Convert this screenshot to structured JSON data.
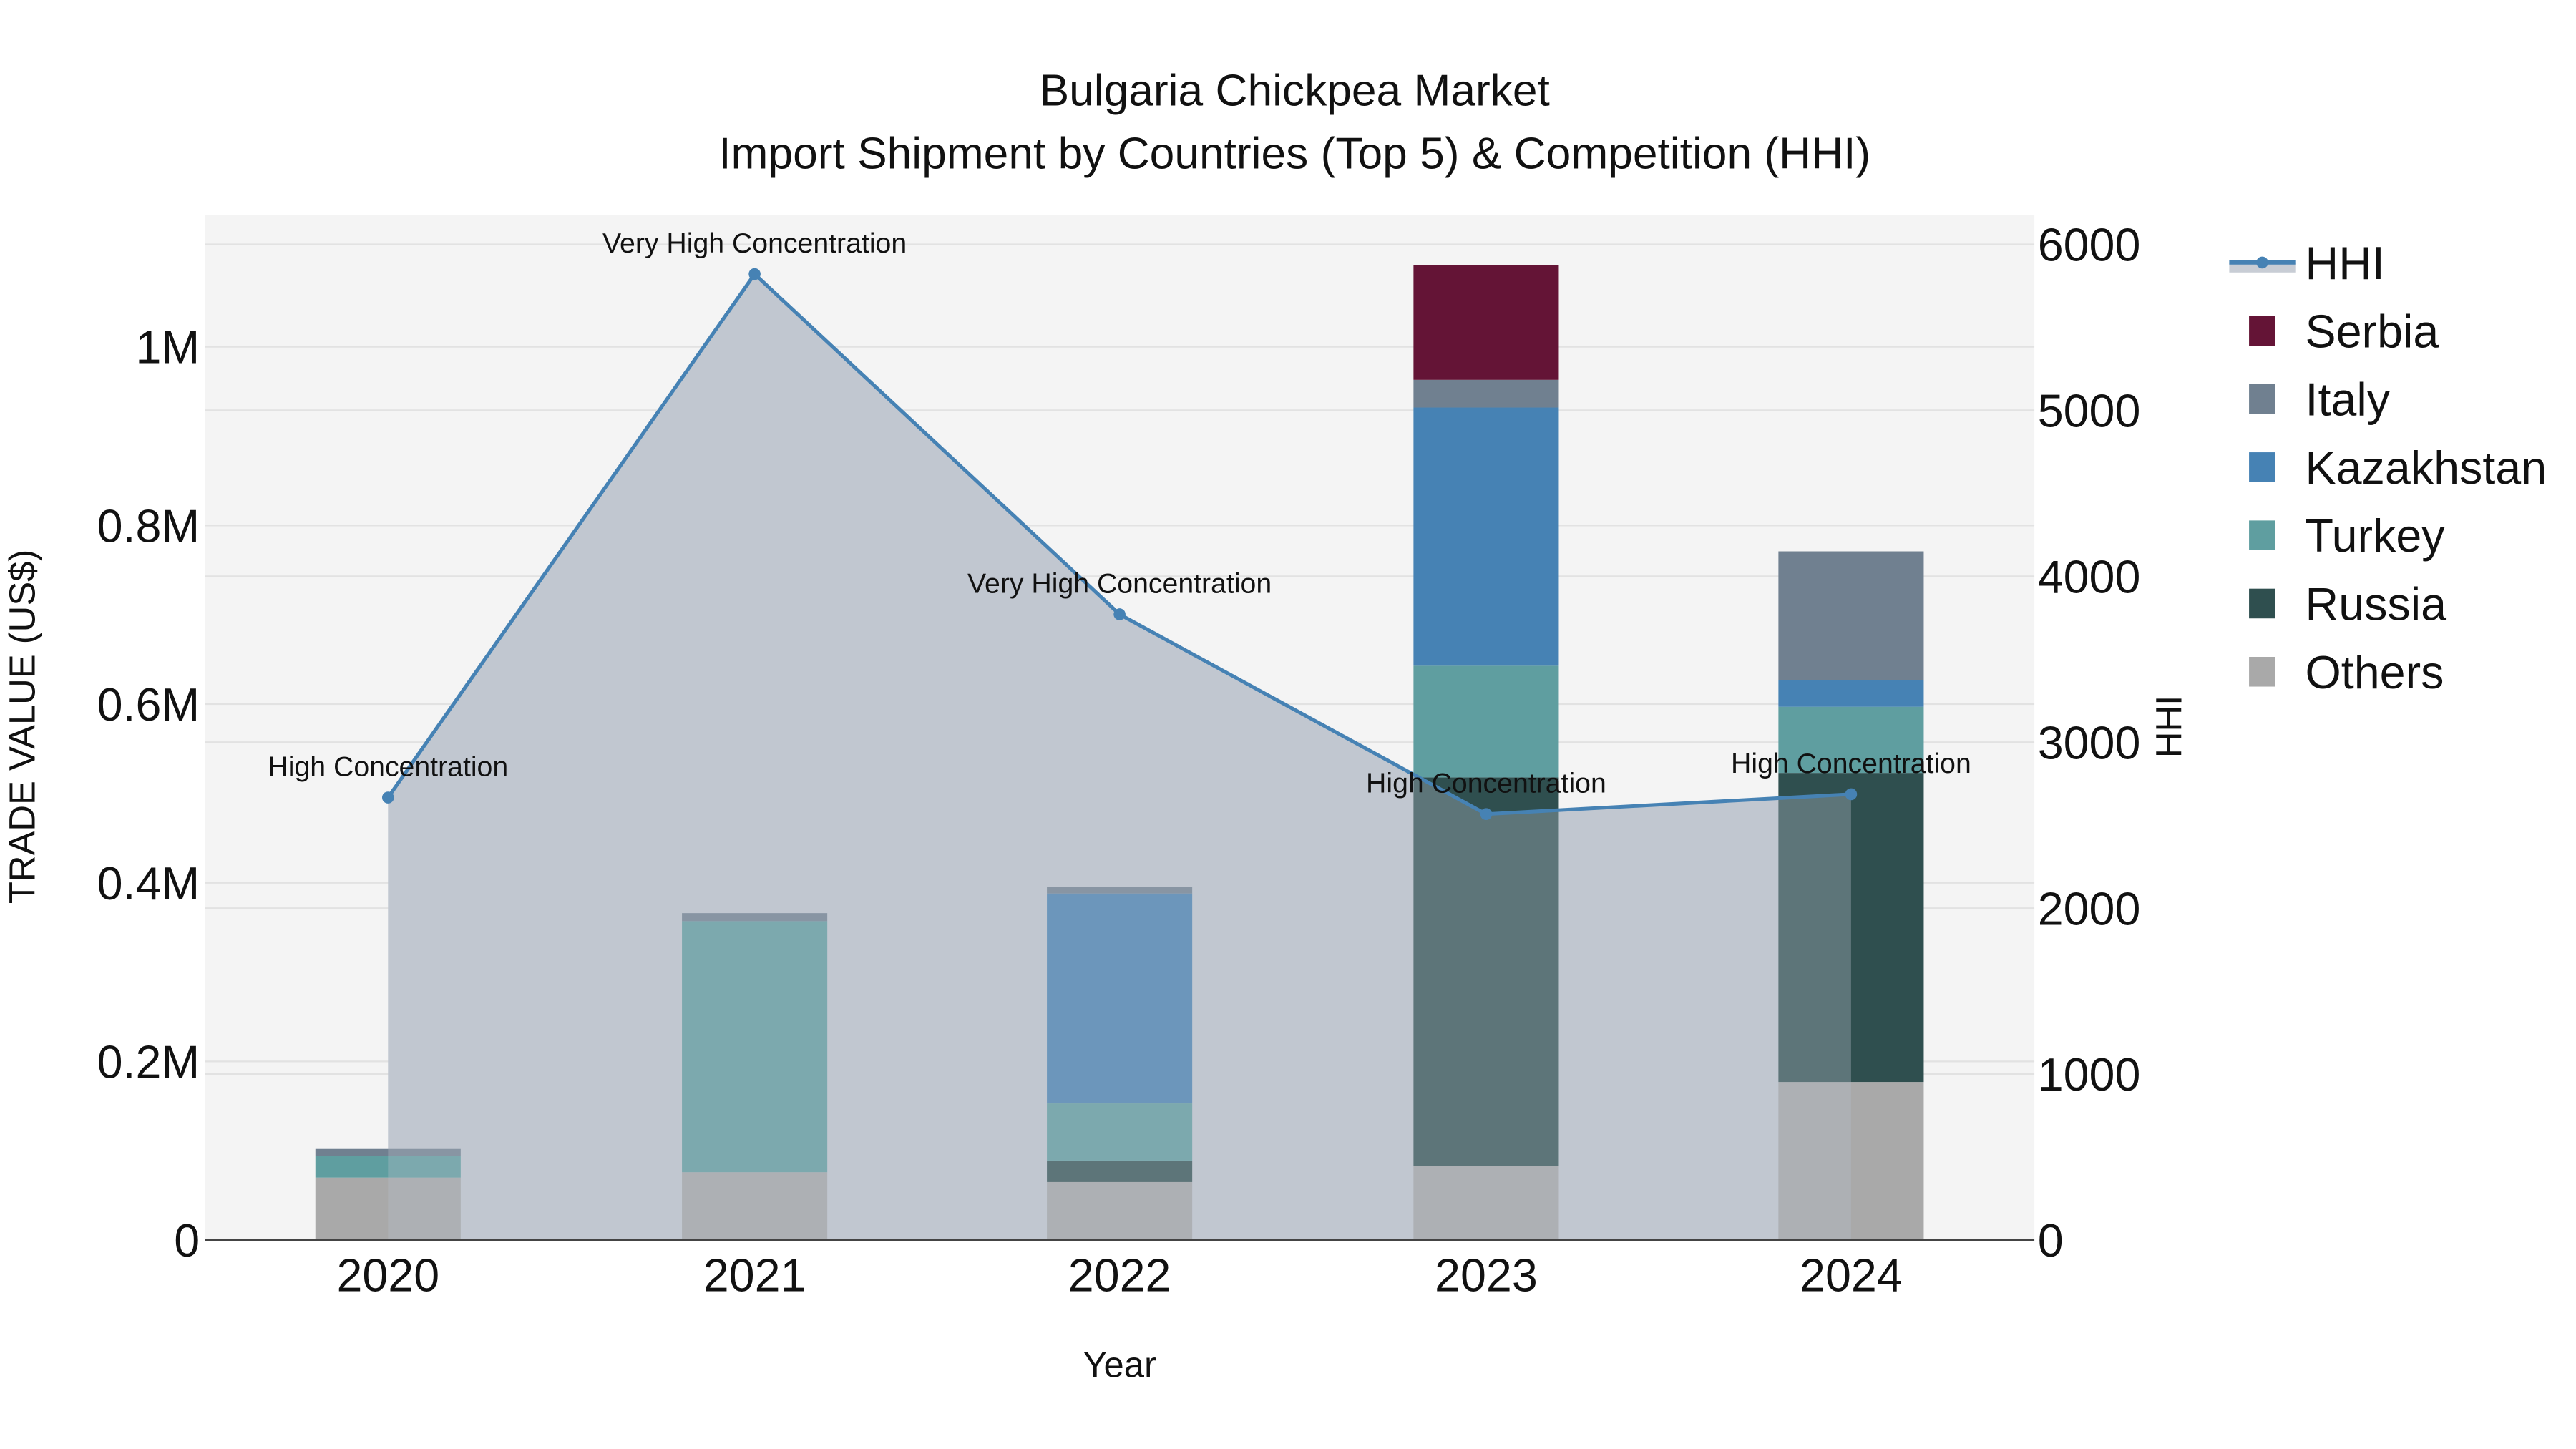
{
  "chart_data": {
    "type": "bar",
    "title": "Bulgaria Chickpea Market",
    "subtitle": "Import Shipment by Countries (Top 5) & Competition (HHI)",
    "xlabel": "Year",
    "ylabel": "TRADE VALUE (US$)",
    "y2label": "HHI",
    "categories": [
      "2020",
      "2021",
      "2022",
      "2023",
      "2024"
    ],
    "ylim": [
      0,
      1150000
    ],
    "y2lim": [
      0,
      6180
    ],
    "yticks": [
      {
        "v": 0,
        "label": "0"
      },
      {
        "v": 200000,
        "label": "0.2M"
      },
      {
        "v": 400000,
        "label": "0.4M"
      },
      {
        "v": 600000,
        "label": "0.6M"
      },
      {
        "v": 800000,
        "label": "0.8M"
      },
      {
        "v": 1000000,
        "label": "1M"
      }
    ],
    "y2ticks": [
      {
        "v": 0,
        "label": "0"
      },
      {
        "v": 1000,
        "label": "1000"
      },
      {
        "v": 2000,
        "label": "2000"
      },
      {
        "v": 3000,
        "label": "3000"
      },
      {
        "v": 4000,
        "label": "4000"
      },
      {
        "v": 5000,
        "label": "5000"
      },
      {
        "v": 6000,
        "label": "6000"
      }
    ],
    "grid": true,
    "legend_position": "right",
    "series": [
      {
        "name": "Others",
        "color": "#A9A9A9",
        "values": [
          70000,
          76000,
          65000,
          83000,
          177000
        ]
      },
      {
        "name": "Russia",
        "color": "#2F4F4F",
        "values": [
          0,
          0,
          24000,
          435000,
          346000
        ]
      },
      {
        "name": "Turkey",
        "color": "#5F9EA0",
        "values": [
          24000,
          281000,
          64000,
          125000,
          74000
        ]
      },
      {
        "name": "Kazakhstan",
        "color": "#4682B4",
        "values": [
          0,
          0,
          235000,
          289000,
          30000
        ]
      },
      {
        "name": "Italy",
        "color": "#708090",
        "values": [
          8000,
          9000,
          7000,
          31000,
          144000
        ]
      },
      {
        "name": "Serbia",
        "color": "#641436",
        "values": [
          0,
          0,
          0,
          128000,
          0
        ]
      }
    ],
    "line_series": {
      "name": "HHI",
      "axis": "y2",
      "color": "#4682B4",
      "fill": "#C8CDD5",
      "values": [
        2667,
        5821,
        3771,
        2567,
        2687
      ],
      "annotations": [
        "High Concentration",
        "Very High Concentration",
        "Very High Concentration",
        "High Concentration",
        "High Concentration"
      ]
    },
    "legend_order": [
      "HHI",
      "Serbia",
      "Italy",
      "Kazakhstan",
      "Turkey",
      "Russia",
      "Others"
    ]
  }
}
